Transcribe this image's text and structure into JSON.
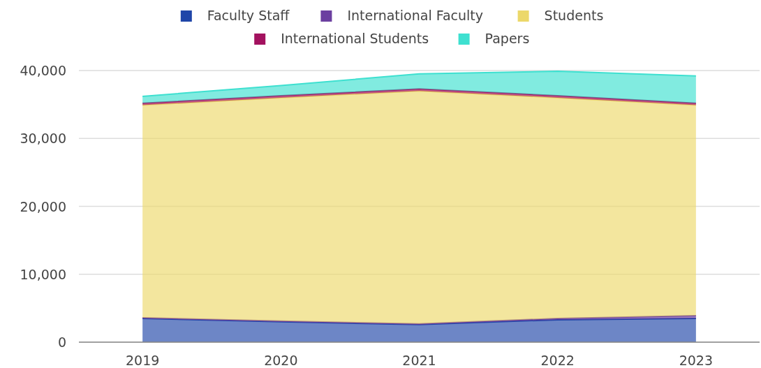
{
  "chart_data": {
    "type": "area",
    "stacked": true,
    "categories": [
      "2019",
      "2020",
      "2021",
      "2022",
      "2023"
    ],
    "series": [
      {
        "name": "Faculty Staff",
        "color": "#1f45a8",
        "values": [
          3500,
          3000,
          2600,
          3300,
          3500
        ]
      },
      {
        "name": "International Faculty",
        "color": "#6b3fa0",
        "values": [
          100,
          100,
          100,
          200,
          400
        ]
      },
      {
        "name": "Students",
        "color": "#ecd86a",
        "values": [
          31300,
          32900,
          34300,
          32500,
          31000
        ]
      },
      {
        "name": "International Students",
        "color": "#a3125f",
        "values": [
          300,
          300,
          300,
          300,
          300
        ]
      },
      {
        "name": "Papers",
        "color": "#3ee0d0",
        "values": [
          1000,
          1500,
          2200,
          3600,
          4000
        ]
      }
    ],
    "ylim": [
      0,
      40000
    ],
    "yticks": [
      {
        "value": 0,
        "label": "0"
      },
      {
        "value": 10000,
        "label": "10,000"
      },
      {
        "value": 20000,
        "label": "20,000"
      },
      {
        "value": 30000,
        "label": "30,000"
      },
      {
        "value": 40000,
        "label": "40,000"
      }
    ],
    "grid": "y",
    "legend": "top"
  }
}
